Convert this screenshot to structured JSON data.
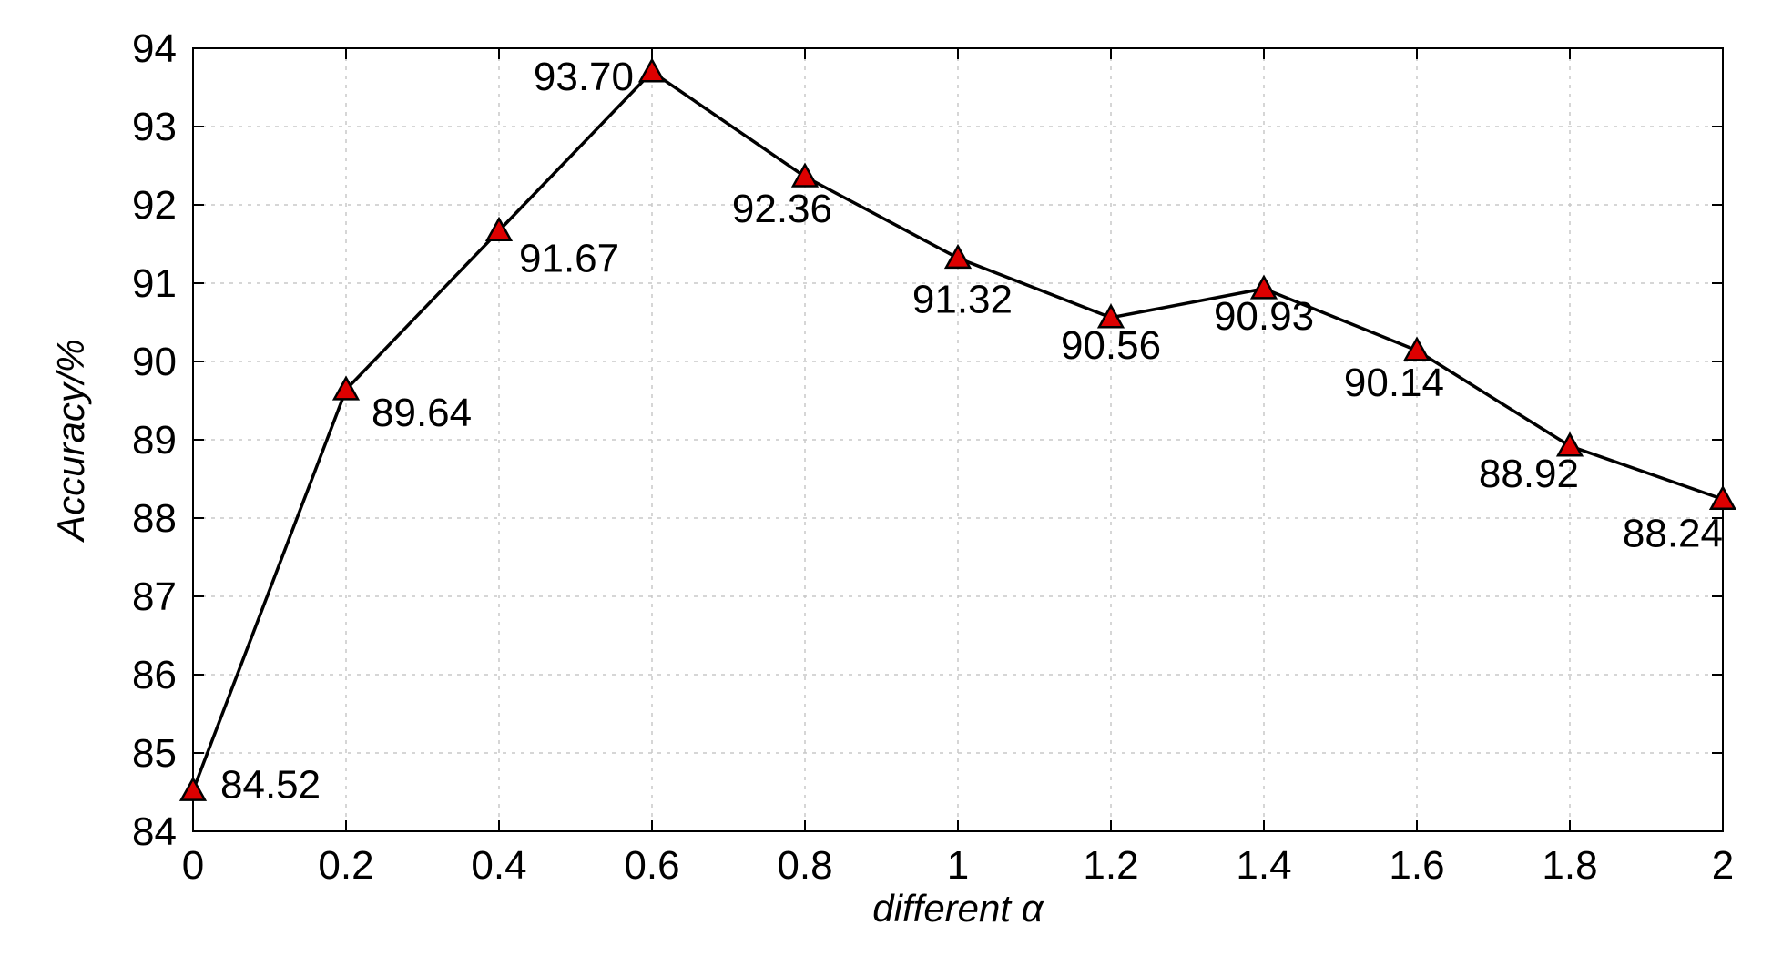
{
  "chart_data": {
    "type": "line",
    "xlabel": "different α",
    "ylabel": "Accuracy/%",
    "x": [
      0,
      0.2,
      0.4,
      0.6,
      0.8,
      1,
      1.2,
      1.4,
      1.6,
      1.8,
      2
    ],
    "series": [
      {
        "values": [
          84.52,
          89.64,
          91.67,
          93.7,
          92.36,
          91.32,
          90.56,
          90.93,
          90.14,
          88.92,
          88.24
        ],
        "labels": [
          "84.52",
          "89.64",
          "91.67",
          "93.70",
          "92.36",
          "91.32",
          "90.56",
          "90.93",
          "90.14",
          "88.92",
          "88.24"
        ],
        "line_color": "#000000",
        "marker": "triangle",
        "marker_color": "#dd0000"
      }
    ],
    "xlim": [
      0,
      2
    ],
    "ylim": [
      84,
      94
    ],
    "xticks": [
      "0",
      "0.2",
      "0.4",
      "0.6",
      "0.8",
      "1",
      "1.2",
      "1.4",
      "1.6",
      "1.8",
      "2"
    ],
    "yticks": [
      "84",
      "85",
      "86",
      "87",
      "88",
      "89",
      "90",
      "91",
      "92",
      "93",
      "94"
    ],
    "grid": true
  }
}
